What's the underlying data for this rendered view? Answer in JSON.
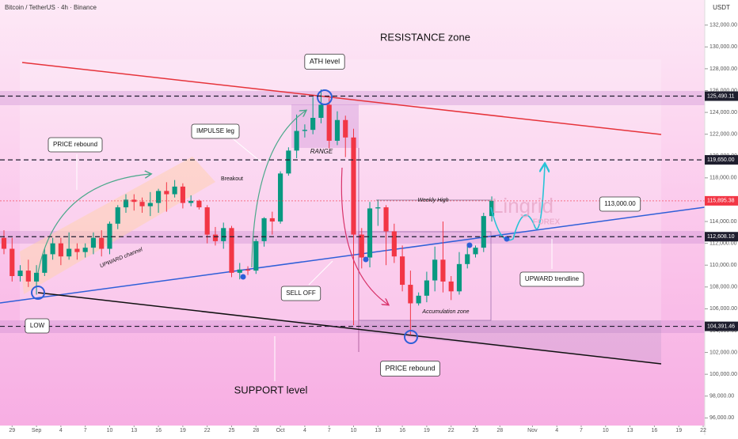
{
  "chart_data": {
    "type": "candlestick",
    "title": "Bitcoin / TetherUS · 4h · Binance",
    "currency": "USDT",
    "watermark": "Lingrid",
    "watermark_sub": "FOREX",
    "up_color": "#089981",
    "down_color": "#f23645",
    "x": [
      "Aug 28",
      "Aug 29",
      "Aug 30",
      "Aug 31",
      "Sep 1",
      "Sep 2",
      "Sep 3",
      "Sep 4",
      "Sep 5",
      "Sep 6",
      "Sep 7",
      "Sep 8",
      "Sep 9",
      "Sep 10",
      "Sep 11",
      "Sep 12",
      "Sep 13",
      "Sep 14",
      "Sep 15",
      "Sep 16",
      "Sep 17",
      "Sep 18",
      "Sep 19",
      "Sep 20",
      "Sep 21",
      "Sep 22",
      "Sep 23",
      "Sep 24",
      "Sep 25",
      "Sep 26",
      "Sep 27",
      "Sep 28",
      "Sep 29",
      "Sep 30",
      "Oct 1",
      "Oct 2",
      "Oct 3",
      "Oct 4",
      "Oct 5",
      "Oct 6",
      "Oct 7",
      "Oct 8",
      "Oct 9",
      "Oct 10",
      "Oct 11",
      "Oct 12",
      "Oct 13",
      "Oct 14",
      "Oct 15",
      "Oct 16",
      "Oct 17",
      "Oct 18",
      "Oct 19",
      "Oct 20",
      "Oct 21",
      "Oct 22",
      "Oct 23",
      "Oct 24",
      "Oct 25",
      "Oct 26",
      "Oct 27"
    ],
    "open": [
      112500,
      111500,
      109000,
      109500,
      108500,
      109300,
      111000,
      112000,
      110800,
      111500,
      111200,
      111600,
      112500,
      111500,
      113800,
      115300,
      116000,
      115800,
      115400,
      115700,
      116800,
      116500,
      117200,
      115700,
      115900,
      115300,
      112800,
      112200,
      113400,
      109300,
      109600,
      109500,
      112200,
      114300,
      114000,
      118400,
      120500,
      122300,
      122400,
      123500,
      124700,
      121400,
      123300,
      121700,
      112800,
      110700,
      115200,
      115300,
      113100,
      110800,
      108200,
      106500,
      107200,
      108600,
      110500,
      108500,
      107600,
      110100,
      111000,
      111600,
      114500
    ],
    "high": [
      113200,
      112500,
      110000,
      110500,
      110000,
      111500,
      112500,
      112500,
      113000,
      112000,
      112000,
      113000,
      113200,
      114000,
      115500,
      116500,
      116500,
      116200,
      116700,
      117000,
      117600,
      117800,
      117500,
      116400,
      116000,
      115500,
      113500,
      113900,
      113600,
      110200,
      109900,
      112400,
      114400,
      114900,
      118600,
      120800,
      123800,
      122900,
      125400,
      126100,
      125300,
      124100,
      123700,
      122500,
      113400,
      115800,
      116000,
      115500,
      113800,
      111800,
      109500,
      107500,
      109400,
      111700,
      114000,
      109000,
      111200,
      112000,
      111800,
      114800,
      116300
    ],
    "low": [
      111000,
      108500,
      108500,
      108000,
      107300,
      109000,
      110500,
      110000,
      110500,
      110500,
      110700,
      111000,
      110800,
      111000,
      113300,
      114800,
      115000,
      114800,
      114500,
      114800,
      114900,
      116200,
      115200,
      115400,
      115100,
      112000,
      111800,
      111500,
      108900,
      108700,
      109100,
      109200,
      111700,
      112800,
      113800,
      118200,
      119800,
      121700,
      122000,
      123000,
      120700,
      121000,
      119900,
      104500,
      109700,
      109800,
      113600,
      110000,
      110200,
      107600,
      103600,
      106300,
      106600,
      107600,
      107500,
      106800,
      107300,
      109700,
      110700,
      111200,
      114000
    ],
    "close": [
      111500,
      109000,
      109500,
      108500,
      109300,
      111000,
      112000,
      110800,
      111500,
      111200,
      111600,
      112500,
      111500,
      113800,
      115300,
      116000,
      115800,
      115400,
      115700,
      116800,
      116500,
      117200,
      115700,
      115900,
      115300,
      112800,
      112200,
      113400,
      109300,
      109600,
      109500,
      112200,
      114300,
      114000,
      118400,
      120500,
      122300,
      122400,
      123500,
      124700,
      121400,
      123300,
      121700,
      112800,
      110700,
      115200,
      115300,
      113100,
      110800,
      108200,
      106500,
      107200,
      108600,
      110500,
      108500,
      107600,
      110100,
      111000,
      111600,
      114500,
      115900
    ],
    "xlim": [
      "Aug 28",
      "Nov 22"
    ],
    "xticks": [
      {
        "value": "Aug 29",
        "label": "29"
      },
      {
        "value": "Sep 1",
        "label": "Sep"
      },
      {
        "value": "Sep 4",
        "label": "4"
      },
      {
        "value": "Sep 7",
        "label": "7"
      },
      {
        "value": "Sep 10",
        "label": "10"
      },
      {
        "value": "Sep 13",
        "label": "13"
      },
      {
        "value": "Sep 16",
        "label": "16"
      },
      {
        "value": "Sep 19",
        "label": "19"
      },
      {
        "value": "Sep 22",
        "label": "22"
      },
      {
        "value": "Sep 25",
        "label": "25"
      },
      {
        "value": "Sep 28",
        "label": "28"
      },
      {
        "value": "Oct 1",
        "label": "Oct"
      },
      {
        "value": "Oct 4",
        "label": "4"
      },
      {
        "value": "Oct 7",
        "label": "7"
      },
      {
        "value": "Oct 10",
        "label": "10"
      },
      {
        "value": "Oct 13",
        "label": "13"
      },
      {
        "value": "Oct 16",
        "label": "16"
      },
      {
        "value": "Oct 19",
        "label": "19"
      },
      {
        "value": "Oct 22",
        "label": "22"
      },
      {
        "value": "Oct 25",
        "label": "25"
      },
      {
        "value": "Oct 28",
        "label": "28"
      },
      {
        "value": "Nov 1",
        "label": "Nov"
      },
      {
        "value": "Nov 4",
        "label": "4"
      },
      {
        "value": "Nov 7",
        "label": "7"
      },
      {
        "value": "Nov 10",
        "label": "10"
      },
      {
        "value": "Nov 13",
        "label": "13"
      },
      {
        "value": "Nov 16",
        "label": "16"
      },
      {
        "value": "Nov 19",
        "label": "19"
      },
      {
        "value": "Nov 22",
        "label": "22"
      }
    ],
    "ylim": [
      95300,
      134300
    ],
    "yticks": [
      {
        "value": 96000,
        "label": "96,000.00"
      },
      {
        "value": 98000,
        "label": "98,000.00"
      },
      {
        "value": 100000,
        "label": "100,000.00"
      },
      {
        "value": 102000,
        "label": "102,000.00"
      },
      {
        "value": 104000,
        "label": "104,000.00"
      },
      {
        "value": 106000,
        "label": "106,000.00"
      },
      {
        "value": 108000,
        "label": "108,000.00"
      },
      {
        "value": 110000,
        "label": "110,000.00"
      },
      {
        "value": 112000,
        "label": "112,000.00"
      },
      {
        "value": 114000,
        "label": "114,000.00"
      },
      {
        "value": 116000,
        "label": "116,000.00"
      },
      {
        "value": 118000,
        "label": "118,000.00"
      },
      {
        "value": 120000,
        "label": "120,000.00"
      },
      {
        "value": 122000,
        "label": "122,000.00"
      },
      {
        "value": 124000,
        "label": "124,000.00"
      },
      {
        "value": 126000,
        "label": "126,000.00"
      },
      {
        "value": 128000,
        "label": "128,000.00"
      },
      {
        "value": 130000,
        "label": "130,000.00"
      },
      {
        "value": 132000,
        "label": "132,000.00"
      }
    ],
    "price_levels": [
      {
        "value": 125490.11,
        "label": "125,490.11",
        "color": "#1e1e2e",
        "dash": true
      },
      {
        "value": 119650,
        "label": "119,650.00",
        "color": "#1e1e2e",
        "dash": true
      },
      {
        "value": 115895.38,
        "label": "115,895.38",
        "color": "#f23645",
        "dash": false
      },
      {
        "value": 112608.1,
        "label": "112,608.10",
        "color": "#1e1e2e",
        "dash": true
      },
      {
        "value": 104391.46,
        "label": "104,391.46",
        "color": "#1e1e2e",
        "dash": true
      }
    ],
    "annotations": [
      "RESISTANCE zone",
      "ATH level",
      "IMPULSE leg",
      "PRICE rebound",
      "RANGE",
      "Breakout",
      "UPWARD channel",
      "Weekly High",
      "113,000.00",
      "UPWARD trendline",
      "SELL OFF",
      "Accumulation zone",
      "LOW",
      "PRICE rebound",
      "SUPPORT level"
    ]
  }
}
